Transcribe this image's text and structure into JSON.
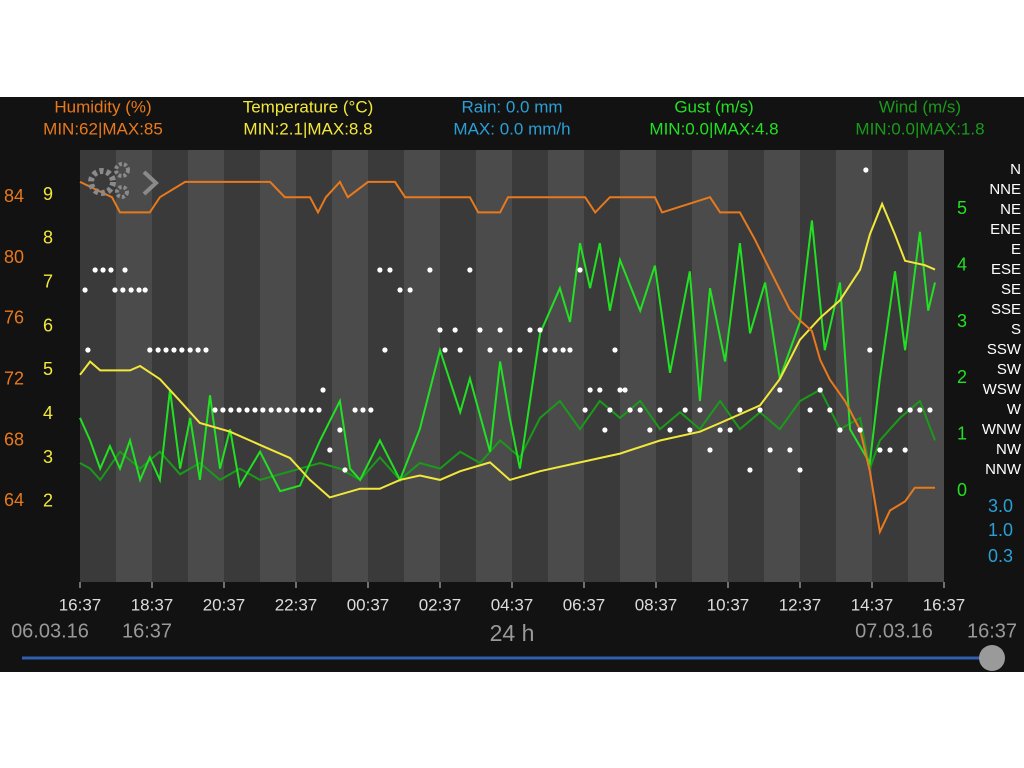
{
  "chart_data": {
    "type": "line",
    "xlim": [
      0,
      24
    ],
    "xticks": [
      {
        "value": 0,
        "label": "16:37"
      },
      {
        "value": 2,
        "label": "18:37"
      },
      {
        "value": 4,
        "label": "20:37"
      },
      {
        "value": 6,
        "label": "22:37"
      },
      {
        "value": 8,
        "label": "00:37"
      },
      {
        "value": 10,
        "label": "02:37"
      },
      {
        "value": 12,
        "label": "04:37"
      },
      {
        "value": 14,
        "label": "06:37"
      },
      {
        "value": 16,
        "label": "08:37"
      },
      {
        "value": 18,
        "label": "10:37"
      },
      {
        "value": 20,
        "label": "12:37"
      },
      {
        "value": 22,
        "label": "14:37"
      },
      {
        "value": 24,
        "label": "16:37"
      }
    ],
    "y2lim": [
      -1.61,
      6.05
    ],
    "y2ticks": [
      0,
      1,
      2,
      3,
      4,
      5
    ],
    "series": [
      {
        "name": "Humidity (%)",
        "summary": "MIN:62|MAX:85",
        "color": "#e8791c",
        "ylim": [
          58.7,
          87.1
        ],
        "yticks": [
          64,
          68,
          72,
          76,
          80,
          84
        ],
        "x": [
          0,
          0.89,
          1.11,
          1.94,
          2.22,
          2.92,
          5.28,
          5.69,
          6.39,
          6.61,
          6.83,
          7.22,
          7.44,
          8,
          8.75,
          9.03,
          10.83,
          11.06,
          11.67,
          11.89,
          14.03,
          14.31,
          14.72,
          15.97,
          16.17,
          17.5,
          17.78,
          18.33,
          18.75,
          19.17,
          19.72,
          20,
          20.33,
          20.56,
          20.83,
          21.25,
          21.67,
          21.94,
          22.22,
          22.5,
          22.92,
          23.19,
          23.75
        ],
        "values": [
          85,
          84,
          83,
          83,
          84,
          85,
          85,
          84,
          84,
          83,
          84,
          85,
          84,
          85,
          85,
          84,
          84,
          83,
          83,
          84,
          84,
          83,
          84,
          84,
          83,
          84,
          83,
          83,
          81.2,
          79.2,
          76.6,
          75.9,
          75.2,
          73.3,
          72,
          70.6,
          68.7,
          66,
          62,
          63.4,
          64,
          64.9,
          64.9
        ]
      },
      {
        "name": "Temperature (°C)",
        "summary": "MIN:2.1|MAX:8.8",
        "color": "#f2e83a",
        "ylim": [
          0.17,
          10.03
        ],
        "yticks": [
          2,
          3,
          4,
          5,
          6,
          7,
          8,
          9
        ],
        "x": [
          0,
          0.28,
          0.56,
          1.39,
          1.67,
          2.22,
          2.78,
          3.33,
          4.17,
          5,
          5.83,
          6.39,
          6.94,
          7.78,
          8.33,
          8.89,
          9.44,
          10,
          10.56,
          11.39,
          11.94,
          12.78,
          13.89,
          15,
          16.11,
          17.22,
          17.78,
          18.89,
          19.44,
          20,
          20.56,
          21.11,
          21.67,
          21.94,
          22.28,
          22.64,
          22.92,
          23.47,
          23.75
        ],
        "values": [
          4.9,
          5.2,
          5,
          5,
          5.1,
          4.8,
          4.3,
          3.8,
          3.6,
          3.3,
          3,
          2.5,
          2.1,
          2.3,
          2.3,
          2.5,
          2.6,
          2.5,
          2.7,
          2.9,
          2.5,
          2.7,
          2.9,
          3.1,
          3.4,
          3.6,
          3.8,
          4.2,
          4.8,
          5.7,
          6.2,
          6.6,
          7.3,
          8.1,
          8.8,
          8.1,
          7.5,
          7.4,
          7.3
        ]
      },
      {
        "name": "Gust (m/s)",
        "summary": "MIN:0.0|MAX:4.8",
        "color": "#22e022",
        "axis": "y2",
        "x": [
          0,
          0.28,
          0.56,
          0.83,
          1.11,
          1.39,
          1.67,
          1.94,
          2.22,
          2.5,
          2.78,
          3.06,
          3.33,
          3.61,
          3.89,
          4.17,
          4.44,
          5,
          5.56,
          6.11,
          6.67,
          7.22,
          7.5,
          7.78,
          8.33,
          8.89,
          9.44,
          10,
          10.56,
          10.83,
          11.39,
          11.67,
          11.94,
          12.22,
          12.78,
          13.33,
          13.61,
          13.89,
          14.17,
          14.44,
          14.72,
          15,
          15.56,
          15.97,
          16.39,
          16.94,
          17.22,
          17.5,
          17.92,
          18.33,
          18.61,
          19.03,
          19.44,
          20,
          20.33,
          20.69,
          21.11,
          21.39,
          21.94,
          22.22,
          22.64,
          22.92,
          23.33,
          23.56,
          23.75
        ],
        "values": [
          1.3,
          0.9,
          0.4,
          0.8,
          0.4,
          0.9,
          0.2,
          0.6,
          0.2,
          1.8,
          0.4,
          1.3,
          0.2,
          1.7,
          0.4,
          1.1,
          0.1,
          0.7,
          0,
          0.1,
          0.9,
          1.6,
          0.4,
          0.2,
          0.9,
          0.2,
          1.1,
          2.5,
          1.4,
          2,
          0.7,
          2.3,
          1.3,
          0.4,
          2.8,
          3.6,
          3,
          4.4,
          3.6,
          4.4,
          3.2,
          4.1,
          3.2,
          4,
          2.1,
          3.9,
          1.6,
          3.6,
          2.3,
          4.4,
          2.8,
          3.7,
          2,
          3,
          4.8,
          2.5,
          3.7,
          1.1,
          0.5,
          2,
          3.9,
          2.5,
          4.6,
          3.2,
          3.7
        ]
      },
      {
        "name": "Wind (m/s)",
        "summary": "MIN:0.0|MAX:1.8",
        "color": "#1a9a1a",
        "axis": "y2",
        "x": [
          0,
          0.28,
          0.56,
          1.11,
          1.67,
          2.22,
          2.78,
          3.33,
          3.89,
          4.44,
          5,
          6.11,
          6.67,
          7.22,
          7.78,
          8.33,
          8.89,
          9.44,
          10,
          10.56,
          11.11,
          11.67,
          12.22,
          12.78,
          13.33,
          13.89,
          14.44,
          15,
          15.56,
          16.11,
          16.67,
          17.22,
          17.78,
          18.33,
          18.89,
          19.44,
          20,
          20.56,
          21.11,
          21.67,
          21.94,
          22.22,
          22.78,
          23.33,
          23.75
        ],
        "values": [
          0.5,
          0.4,
          0.2,
          0.7,
          0.4,
          0.7,
          0.3,
          0.5,
          0.2,
          0.4,
          0.2,
          0.4,
          0.5,
          0.4,
          0.2,
          0.6,
          0.2,
          0.5,
          0.4,
          0.7,
          0.5,
          0.9,
          0.6,
          1.3,
          1.6,
          1.1,
          1.6,
          1.3,
          1.6,
          1.1,
          1.4,
          1.1,
          1.6,
          1.1,
          1.4,
          1.1,
          1.6,
          1.8,
          1.1,
          1.3,
          0.4,
          0.9,
          1.3,
          1.6,
          0.9
        ]
      }
    ],
    "rain": {
      "name": "Rain: 0.0 mm",
      "summary": "MAX: 0.0 mm/h",
      "color": "#2a9fd6",
      "log": true,
      "ylim": [
        0.1,
        4
      ],
      "yticks": [
        {
          "value": 3,
          "label": "3.0"
        },
        {
          "value": 1,
          "label": "1.0"
        },
        {
          "value": 0.3,
          "label": "0.3"
        }
      ]
    },
    "direction": {
      "color": "#ffffff",
      "ticks": [
        "N",
        "NNE",
        "NE",
        "ENE",
        "E",
        "ESE",
        "SE",
        "SSE",
        "S",
        "SSW",
        "SW",
        "WSW",
        "W",
        "WNW",
        "NW",
        "NNW"
      ],
      "x": [
        0.14,
        0.22,
        0.42,
        0.64,
        0.86,
        0.97,
        1.19,
        1.25,
        1.42,
        1.64,
        1.81,
        1.94,
        2.17,
        2.39,
        2.61,
        2.83,
        3.06,
        3.28,
        3.5,
        3.75,
        3.97,
        4.19,
        4.42,
        4.64,
        4.86,
        5.08,
        5.31,
        5.53,
        5.75,
        5.97,
        6.19,
        6.42,
        6.64,
        6.75,
        6.94,
        7.22,
        7.36,
        7.64,
        7.86,
        8.08,
        8.33,
        8.47,
        8.61,
        8.89,
        9.17,
        9.72,
        10,
        10.14,
        10.42,
        10.56,
        10.83,
        11.11,
        11.39,
        11.67,
        11.94,
        12.22,
        12.5,
        12.78,
        12.92,
        13.19,
        13.42,
        13.61,
        13.89,
        14.03,
        14.17,
        14.44,
        14.58,
        14.72,
        14.86,
        15,
        15.14,
        15.28,
        15.56,
        15.83,
        16.11,
        16.39,
        16.81,
        16.94,
        17.22,
        17.5,
        17.78,
        18.06,
        18.33,
        18.61,
        18.89,
        19.17,
        19.44,
        19.72,
        20,
        20.28,
        20.56,
        20.83,
        21.11,
        21.67,
        21.83,
        21.94,
        22.22,
        22.5,
        22.78,
        22.92,
        23.06,
        23.33,
        23.61
      ],
      "values": [
        "SE",
        "SSW",
        "ESE",
        "ESE",
        "ESE",
        "SE",
        "SE",
        "ESE",
        "SE",
        "SE",
        "SE",
        "SSW",
        "SSW",
        "SSW",
        "SSW",
        "SSW",
        "SSW",
        "SSW",
        "SSW",
        "W",
        "W",
        "W",
        "W",
        "W",
        "W",
        "W",
        "W",
        "W",
        "W",
        "W",
        "W",
        "W",
        "W",
        "WSW",
        "NW",
        "WNW",
        "NNW",
        "W",
        "W",
        "W",
        "ESE",
        "SSW",
        "ESE",
        "SE",
        "SE",
        "ESE",
        "S",
        "SSW",
        "S",
        "SSW",
        "ESE",
        "S",
        "SSW",
        "S",
        "SSW",
        "SSW",
        "S",
        "S",
        "SSW",
        "SSW",
        "SSW",
        "SSW",
        "ESE",
        "W",
        "WSW",
        "WSW",
        "WNW",
        "W",
        "SSW",
        "WSW",
        "WSW",
        "W",
        "W",
        "WNW",
        "W",
        "WNW",
        "W",
        "WNW",
        "W",
        "NW",
        "WNW",
        "WNW",
        "W",
        "NNW",
        "W",
        "NW",
        "WSW",
        "NW",
        "NNW",
        "W",
        "WSW",
        "W",
        "WNW",
        "WNW",
        "N",
        "SSW",
        "NW",
        "NW",
        "W",
        "NW",
        "W",
        "W",
        "W"
      ]
    },
    "footer": {
      "start_date": "06.03.16",
      "start_time": "16:37",
      "span": "24 h",
      "end_date": "07.03.16",
      "end_time": "16:37"
    }
  }
}
